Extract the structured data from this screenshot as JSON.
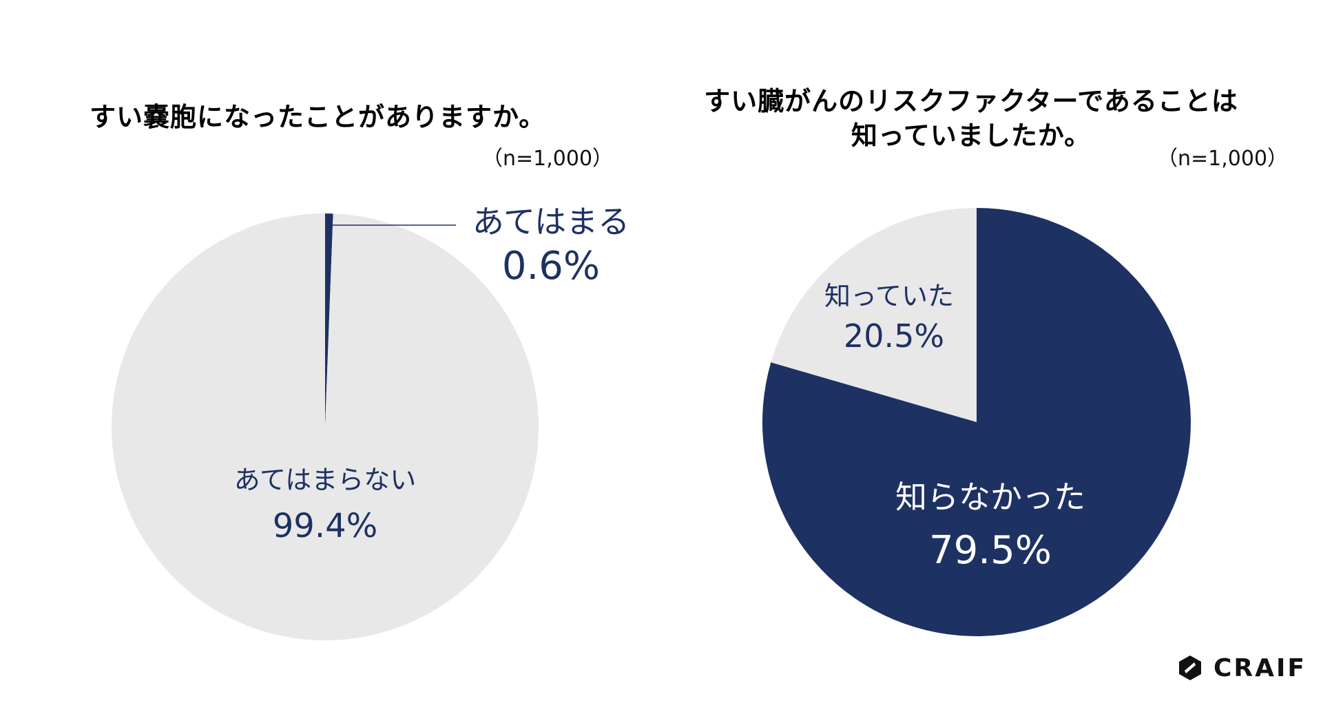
{
  "colors": {
    "navy": "#1e3163",
    "light_gray": "#e8e8e8",
    "label_on_light": "#1e3163",
    "label_on_dark": "#ffffff"
  },
  "chart_data": [
    {
      "type": "pie",
      "title": "すい嚢胞になったことがありますか。",
      "sample_size": "（n=1,000）",
      "slices": [
        {
          "label": "あてはまる",
          "value": 0.6,
          "display": "0.6%",
          "color": "#1e3163"
        },
        {
          "label": "あてはまらない",
          "value": 99.4,
          "display": "99.4%",
          "color": "#e8e8e8"
        }
      ]
    },
    {
      "type": "pie",
      "title_lines": [
        "すい臓がんのリスクファクターであることは",
        "知っていましたか。"
      ],
      "sample_size": "（n=1,000）",
      "slices": [
        {
          "label": "知らなかった",
          "value": 79.5,
          "display": "79.5%",
          "color": "#1e3163"
        },
        {
          "label": "知っていた",
          "value": 20.5,
          "display": "20.5%",
          "color": "#e8e8e8"
        }
      ]
    }
  ],
  "brand": {
    "name": "CRAIF",
    "logo_icon": "craif-logo-icon"
  }
}
